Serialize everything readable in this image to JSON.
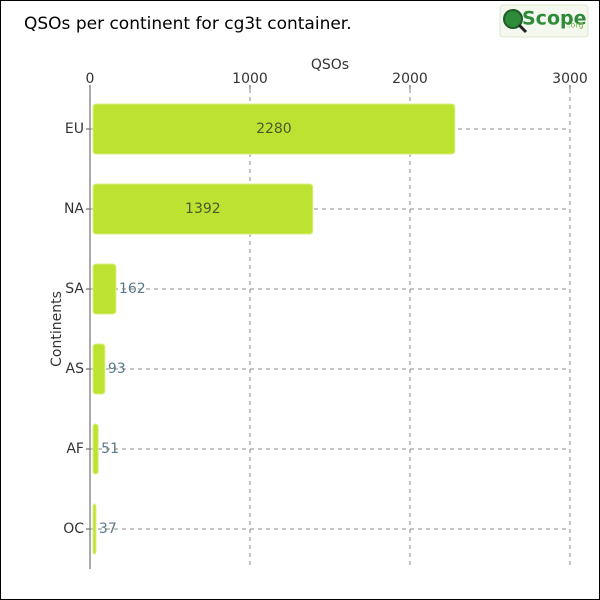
{
  "chart_data": {
    "type": "barh",
    "title": "QSOs per continent for cg3t container.",
    "x_label": "QSOs",
    "y_label": "Continents",
    "categories": [
      "EU",
      "NA",
      "SA",
      "AS",
      "AF",
      "OC"
    ],
    "values": [
      2280,
      1392,
      162,
      93,
      51,
      37
    ],
    "color": "#bde232",
    "xlim": [
      0,
      3000
    ],
    "xticks": [
      0,
      1000,
      2000,
      3000
    ],
    "grid": true
  },
  "logo": {
    "name": "Scope",
    "domain": ".org"
  }
}
